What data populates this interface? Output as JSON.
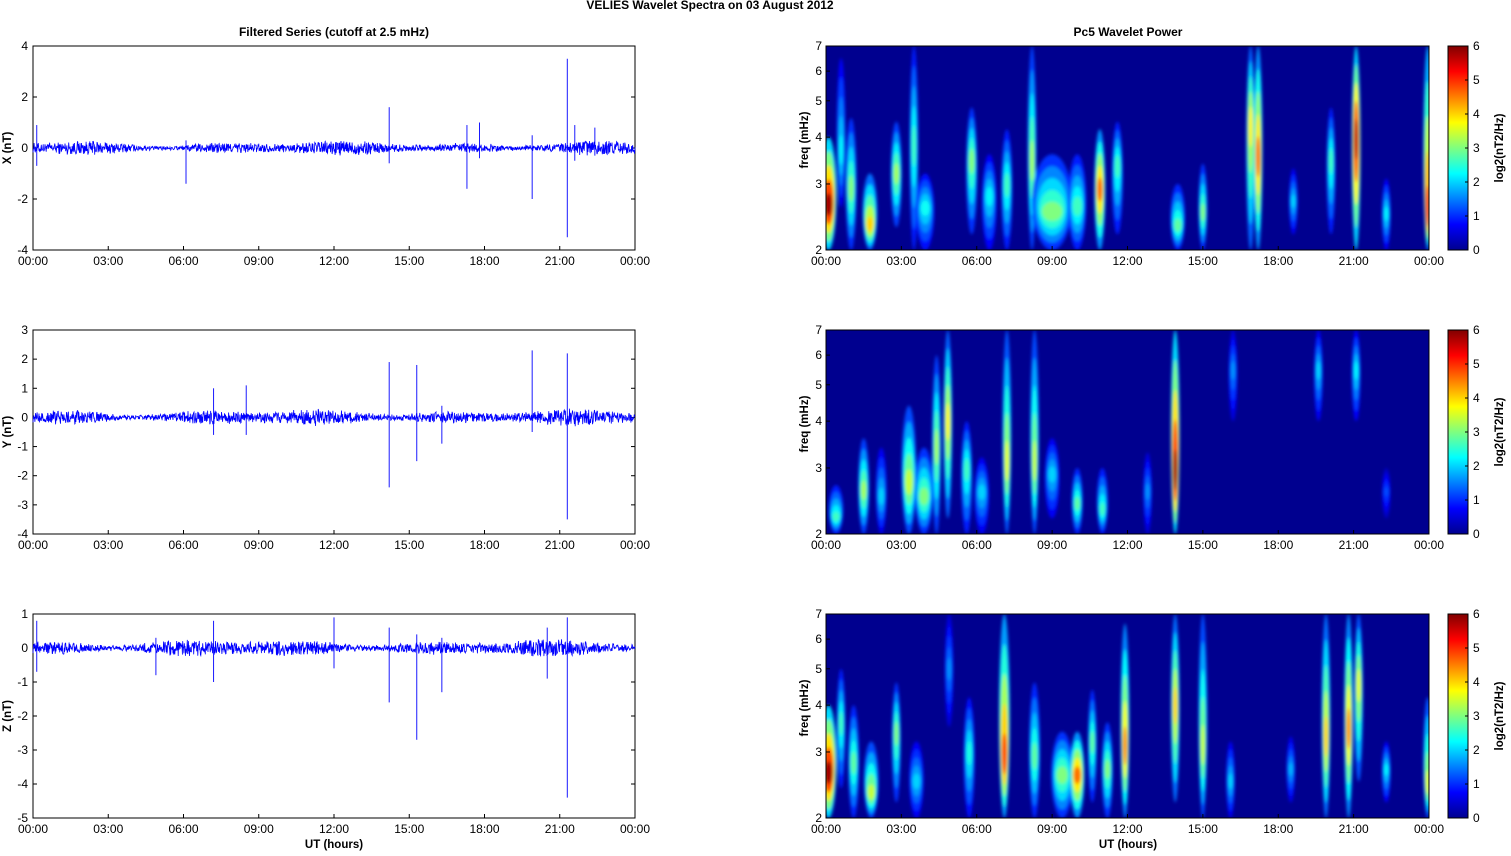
{
  "figure": {
    "title": "VELIES Wavelet Spectra on 03 August    2012",
    "left_title": "Filtered Series (cutoff at 2.5 mHz)",
    "right_title": "Pc5 Wavelet Power",
    "xlabel": "UT (hours)",
    "freq_label": "freq (mHz)",
    "colorbar_label": "log2(nT2/Hz)",
    "colors": {
      "trace": "#0000ff",
      "spectrum_background": "#00008f"
    }
  },
  "chart_data": [
    {
      "type": "line",
      "panel": "X filtered series",
      "ylabel": "X (nT)",
      "ylim": [
        -4,
        4
      ],
      "yticks": [
        -4,
        -2,
        0,
        2,
        4
      ],
      "xlim_hours": [
        0,
        24
      ],
      "xticks": [
        "00:00",
        "03:00",
        "06:00",
        "09:00",
        "12:00",
        "15:00",
        "18:00",
        "21:00",
        "00:00"
      ],
      "baseline_amplitude_nT": 0.25,
      "spikes": [
        {
          "t": 0.15,
          "min": -0.7,
          "max": 0.9
        },
        {
          "t": 6.1,
          "min": -1.4,
          "max": 0.3
        },
        {
          "t": 14.2,
          "min": -0.6,
          "max": 1.6
        },
        {
          "t": 17.3,
          "min": -1.6,
          "max": 0.9
        },
        {
          "t": 17.8,
          "min": -0.4,
          "max": 1.0
        },
        {
          "t": 19.9,
          "min": -2.0,
          "max": 0.5
        },
        {
          "t": 21.3,
          "min": -3.5,
          "max": 3.5
        },
        {
          "t": 21.6,
          "min": -0.5,
          "max": 0.9
        },
        {
          "t": 22.4,
          "min": -0.3,
          "max": 0.8
        }
      ]
    },
    {
      "type": "line",
      "panel": "Y filtered series",
      "ylabel": "Y (nT)",
      "ylim": [
        -4,
        3
      ],
      "yticks": [
        -4,
        -3,
        -2,
        -1,
        0,
        1,
        2,
        3
      ],
      "xlim_hours": [
        0,
        24
      ],
      "xticks": [
        "00:00",
        "03:00",
        "06:00",
        "09:00",
        "12:00",
        "15:00",
        "18:00",
        "21:00",
        "00:00"
      ],
      "baseline_amplitude_nT": 0.25,
      "spikes": [
        {
          "t": 7.2,
          "min": -0.6,
          "max": 1.0
        },
        {
          "t": 8.5,
          "min": -0.6,
          "max": 1.1
        },
        {
          "t": 14.2,
          "min": -2.4,
          "max": 1.9
        },
        {
          "t": 15.3,
          "min": -1.5,
          "max": 1.8
        },
        {
          "t": 16.3,
          "min": -0.9,
          "max": 0.4
        },
        {
          "t": 19.9,
          "min": -0.5,
          "max": 2.3
        },
        {
          "t": 21.3,
          "min": -3.5,
          "max": 2.2
        }
      ]
    },
    {
      "type": "line",
      "panel": "Z filtered series",
      "ylabel": "Z (nT)",
      "ylim": [
        -5,
        1
      ],
      "yticks": [
        -5,
        -4,
        -3,
        -2,
        -1,
        0,
        1
      ],
      "xlim_hours": [
        0,
        24
      ],
      "xticks": [
        "00:00",
        "03:00",
        "06:00",
        "09:00",
        "12:00",
        "15:00",
        "18:00",
        "21:00",
        "00:00"
      ],
      "baseline_amplitude_nT": 0.22,
      "spikes": [
        {
          "t": 0.15,
          "min": -0.7,
          "max": 0.8
        },
        {
          "t": 4.9,
          "min": -0.8,
          "max": 0.3
        },
        {
          "t": 7.2,
          "min": -1.0,
          "max": 0.8
        },
        {
          "t": 12.0,
          "min": -0.6,
          "max": 0.9
        },
        {
          "t": 14.2,
          "min": -1.6,
          "max": 0.6
        },
        {
          "t": 15.3,
          "min": -2.7,
          "max": 0.4
        },
        {
          "t": 16.3,
          "min": -1.3,
          "max": 0.3
        },
        {
          "t": 20.5,
          "min": -0.9,
          "max": 0.6
        },
        {
          "t": 21.3,
          "min": -4.4,
          "max": 0.9
        }
      ]
    },
    {
      "type": "heatmap",
      "panel": "X wavelet power",
      "ylabel": "freq (mHz)",
      "yscale": "log",
      "ylim": [
        2,
        7
      ],
      "yticks": [
        2,
        3,
        4,
        5,
        6,
        7
      ],
      "xlim_hours": [
        0,
        24
      ],
      "xticks": [
        "00:00",
        "03:00",
        "06:00",
        "09:00",
        "12:00",
        "15:00",
        "18:00",
        "21:00",
        "00:00"
      ],
      "colorbar": {
        "range": [
          0,
          6
        ],
        "ticks": [
          0,
          1,
          2,
          3,
          4,
          5,
          6
        ],
        "colormap": "jet"
      },
      "blobs": [
        {
          "t": 0.1,
          "f": 2.6,
          "power": 5.8,
          "width_h": 0.22,
          "fmin": 2.0,
          "fmax": 4.0
        },
        {
          "t": 0.6,
          "f": 3.6,
          "power": 2.2,
          "width_h": 0.1,
          "fmin": 2.6,
          "fmax": 6.5
        },
        {
          "t": 1.0,
          "f": 2.9,
          "power": 3.0,
          "width_h": 0.15,
          "fmin": 2.0,
          "fmax": 4.5
        },
        {
          "t": 1.75,
          "f": 2.3,
          "power": 4.0,
          "width_h": 0.2,
          "fmin": 2.0,
          "fmax": 3.2
        },
        {
          "t": 2.8,
          "f": 3.2,
          "power": 3.2,
          "width_h": 0.15,
          "fmin": 2.3,
          "fmax": 4.4
        },
        {
          "t": 3.5,
          "f": 3.8,
          "power": 2.6,
          "width_h": 0.08,
          "fmin": 2.0,
          "fmax": 7.0
        },
        {
          "t": 3.95,
          "f": 2.6,
          "power": 2.3,
          "width_h": 0.25,
          "fmin": 2.0,
          "fmax": 3.2
        },
        {
          "t": 5.8,
          "f": 3.5,
          "power": 3.0,
          "width_h": 0.15,
          "fmin": 2.2,
          "fmax": 4.8
        },
        {
          "t": 6.5,
          "f": 2.8,
          "power": 2.2,
          "width_h": 0.2,
          "fmin": 2.0,
          "fmax": 3.6
        },
        {
          "t": 7.2,
          "f": 3.0,
          "power": 2.6,
          "width_h": 0.15,
          "fmin": 2.0,
          "fmax": 4.2
        },
        {
          "t": 8.2,
          "f": 3.4,
          "power": 3.2,
          "width_h": 0.1,
          "fmin": 2.0,
          "fmax": 7.0
        },
        {
          "t": 9.0,
          "f": 2.5,
          "power": 3.0,
          "width_h": 0.55,
          "fmin": 2.0,
          "fmax": 3.6
        },
        {
          "t": 10.0,
          "f": 2.6,
          "power": 2.6,
          "width_h": 0.25,
          "fmin": 2.0,
          "fmax": 3.6
        },
        {
          "t": 10.9,
          "f": 2.9,
          "power": 4.6,
          "width_h": 0.15,
          "fmin": 2.0,
          "fmax": 4.2
        },
        {
          "t": 11.6,
          "f": 3.4,
          "power": 2.6,
          "width_h": 0.15,
          "fmin": 2.2,
          "fmax": 4.4
        },
        {
          "t": 14.0,
          "f": 2.3,
          "power": 2.8,
          "width_h": 0.2,
          "fmin": 2.0,
          "fmax": 3.0
        },
        {
          "t": 15.0,
          "f": 2.5,
          "power": 3.0,
          "width_h": 0.12,
          "fmin": 2.0,
          "fmax": 3.4
        },
        {
          "t": 16.9,
          "f": 4.4,
          "power": 3.8,
          "width_h": 0.06,
          "fmin": 2.0,
          "fmax": 7.0
        },
        {
          "t": 17.2,
          "f": 3.5,
          "power": 4.6,
          "width_h": 0.08,
          "fmin": 2.0,
          "fmax": 7.0
        },
        {
          "t": 18.6,
          "f": 2.7,
          "power": 2.0,
          "width_h": 0.1,
          "fmin": 2.2,
          "fmax": 3.3
        },
        {
          "t": 20.1,
          "f": 3.5,
          "power": 2.6,
          "width_h": 0.1,
          "fmin": 2.2,
          "fmax": 4.8
        },
        {
          "t": 21.1,
          "f": 4.0,
          "power": 5.6,
          "width_h": 0.06,
          "fmin": 2.0,
          "fmax": 7.0
        },
        {
          "t": 22.3,
          "f": 2.5,
          "power": 2.2,
          "width_h": 0.12,
          "fmin": 2.0,
          "fmax": 3.1
        },
        {
          "t": 23.95,
          "f": 2.4,
          "power": 5.0,
          "width_h": 0.05,
          "fmin": 2.0,
          "fmax": 7.0
        }
      ]
    },
    {
      "type": "heatmap",
      "panel": "Y wavelet power",
      "ylabel": "freq (mHz)",
      "yscale": "log",
      "ylim": [
        2,
        7
      ],
      "yticks": [
        2,
        3,
        4,
        5,
        6,
        7
      ],
      "xlim_hours": [
        0,
        24
      ],
      "xticks": [
        "00:00",
        "03:00",
        "06:00",
        "09:00",
        "12:00",
        "15:00",
        "18:00",
        "21:00",
        "00:00"
      ],
      "colorbar": {
        "range": [
          0,
          6
        ],
        "ticks": [
          0,
          1,
          2,
          3,
          4,
          5,
          6
        ],
        "colormap": "jet"
      },
      "blobs": [
        {
          "t": 0.4,
          "f": 2.2,
          "power": 2.6,
          "width_h": 0.2,
          "fmin": 2.0,
          "fmax": 2.7
        },
        {
          "t": 1.5,
          "f": 2.6,
          "power": 3.2,
          "width_h": 0.15,
          "fmin": 2.0,
          "fmax": 3.6
        },
        {
          "t": 2.2,
          "f": 2.5,
          "power": 2.0,
          "width_h": 0.15,
          "fmin": 2.0,
          "fmax": 3.4
        },
        {
          "t": 3.3,
          "f": 2.7,
          "power": 3.4,
          "width_h": 0.2,
          "fmin": 2.0,
          "fmax": 4.4
        },
        {
          "t": 3.9,
          "f": 2.5,
          "power": 3.0,
          "width_h": 0.25,
          "fmin": 2.0,
          "fmax": 3.4
        },
        {
          "t": 4.4,
          "f": 3.4,
          "power": 3.2,
          "width_h": 0.12,
          "fmin": 2.0,
          "fmax": 6.0
        },
        {
          "t": 4.85,
          "f": 4.0,
          "power": 3.8,
          "width_h": 0.1,
          "fmin": 2.2,
          "fmax": 7.0
        },
        {
          "t": 5.6,
          "f": 3.0,
          "power": 2.6,
          "width_h": 0.15,
          "fmin": 2.0,
          "fmax": 4.0
        },
        {
          "t": 6.2,
          "f": 2.6,
          "power": 2.0,
          "width_h": 0.2,
          "fmin": 2.0,
          "fmax": 3.2
        },
        {
          "t": 7.2,
          "f": 3.0,
          "power": 3.6,
          "width_h": 0.08,
          "fmin": 2.0,
          "fmax": 7.0
        },
        {
          "t": 8.3,
          "f": 3.0,
          "power": 3.4,
          "width_h": 0.1,
          "fmin": 2.0,
          "fmax": 7.0
        },
        {
          "t": 9.0,
          "f": 2.9,
          "power": 2.0,
          "width_h": 0.2,
          "fmin": 2.2,
          "fmax": 3.6
        },
        {
          "t": 10.0,
          "f": 2.4,
          "power": 2.8,
          "width_h": 0.15,
          "fmin": 2.0,
          "fmax": 3.0
        },
        {
          "t": 11.0,
          "f": 2.3,
          "power": 2.6,
          "width_h": 0.15,
          "fmin": 2.0,
          "fmax": 3.0
        },
        {
          "t": 12.8,
          "f": 2.6,
          "power": 1.6,
          "width_h": 0.08,
          "fmin": 2.0,
          "fmax": 3.3
        },
        {
          "t": 13.9,
          "f": 2.8,
          "power": 5.8,
          "width_h": 0.12,
          "fmin": 2.0,
          "fmax": 7.0
        },
        {
          "t": 16.2,
          "f": 5.5,
          "power": 1.6,
          "width_h": 0.04,
          "fmin": 4.0,
          "fmax": 7.0
        },
        {
          "t": 19.6,
          "f": 5.5,
          "power": 2.0,
          "width_h": 0.05,
          "fmin": 4.0,
          "fmax": 7.0
        },
        {
          "t": 21.1,
          "f": 5.5,
          "power": 2.2,
          "width_h": 0.05,
          "fmin": 4.0,
          "fmax": 7.0
        },
        {
          "t": 22.3,
          "f": 2.6,
          "power": 1.2,
          "width_h": 0.1,
          "fmin": 2.2,
          "fmax": 3.0
        }
      ]
    },
    {
      "type": "heatmap",
      "panel": "Z wavelet power",
      "ylabel": "freq (mHz)",
      "yscale": "log",
      "ylim": [
        2,
        7
      ],
      "yticks": [
        2,
        3,
        4,
        5,
        6,
        7
      ],
      "xlim_hours": [
        0,
        24
      ],
      "xticks": [
        "00:00",
        "03:00",
        "06:00",
        "09:00",
        "12:00",
        "15:00",
        "18:00",
        "21:00",
        "00:00"
      ],
      "colorbar": {
        "range": [
          0,
          6
        ],
        "ticks": [
          0,
          1,
          2,
          3,
          4,
          5,
          6
        ],
        "colormap": "jet"
      },
      "blobs": [
        {
          "t": 0.1,
          "f": 2.6,
          "power": 5.8,
          "width_h": 0.22,
          "fmin": 2.0,
          "fmax": 4.0
        },
        {
          "t": 0.6,
          "f": 3.6,
          "power": 2.6,
          "width_h": 0.1,
          "fmin": 2.4,
          "fmax": 5.0
        },
        {
          "t": 1.1,
          "f": 2.8,
          "power": 2.8,
          "width_h": 0.15,
          "fmin": 2.0,
          "fmax": 4.0
        },
        {
          "t": 1.8,
          "f": 2.3,
          "power": 3.4,
          "width_h": 0.2,
          "fmin": 2.0,
          "fmax": 3.2
        },
        {
          "t": 2.8,
          "f": 3.4,
          "power": 3.0,
          "width_h": 0.12,
          "fmin": 2.2,
          "fmax": 4.6
        },
        {
          "t": 3.6,
          "f": 2.5,
          "power": 2.0,
          "width_h": 0.2,
          "fmin": 2.0,
          "fmax": 3.2
        },
        {
          "t": 4.9,
          "f": 5.0,
          "power": 1.6,
          "width_h": 0.05,
          "fmin": 3.5,
          "fmax": 7.0
        },
        {
          "t": 5.7,
          "f": 3.0,
          "power": 2.4,
          "width_h": 0.15,
          "fmin": 2.0,
          "fmax": 4.2
        },
        {
          "t": 7.1,
          "f": 2.8,
          "power": 4.8,
          "width_h": 0.15,
          "fmin": 2.0,
          "fmax": 7.0
        },
        {
          "t": 8.3,
          "f": 2.9,
          "power": 2.8,
          "width_h": 0.15,
          "fmin": 2.0,
          "fmax": 4.6
        },
        {
          "t": 9.4,
          "f": 2.6,
          "power": 3.0,
          "width_h": 0.3,
          "fmin": 2.0,
          "fmax": 3.4
        },
        {
          "t": 10.0,
          "f": 2.6,
          "power": 4.6,
          "width_h": 0.2,
          "fmin": 2.0,
          "fmax": 3.4
        },
        {
          "t": 10.6,
          "f": 3.2,
          "power": 2.8,
          "width_h": 0.12,
          "fmin": 2.2,
          "fmax": 4.4
        },
        {
          "t": 11.2,
          "f": 2.7,
          "power": 3.0,
          "width_h": 0.15,
          "fmin": 2.0,
          "fmax": 3.6
        },
        {
          "t": 11.9,
          "f": 3.0,
          "power": 4.4,
          "width_h": 0.12,
          "fmin": 2.0,
          "fmax": 6.6
        },
        {
          "t": 13.9,
          "f": 4.0,
          "power": 4.0,
          "width_h": 0.08,
          "fmin": 2.2,
          "fmax": 7.0
        },
        {
          "t": 15.0,
          "f": 3.0,
          "power": 3.4,
          "width_h": 0.08,
          "fmin": 2.0,
          "fmax": 7.0
        },
        {
          "t": 16.1,
          "f": 2.5,
          "power": 2.0,
          "width_h": 0.1,
          "fmin": 2.0,
          "fmax": 3.2
        },
        {
          "t": 18.5,
          "f": 2.7,
          "power": 1.8,
          "width_h": 0.1,
          "fmin": 2.2,
          "fmax": 3.3
        },
        {
          "t": 19.9,
          "f": 3.2,
          "power": 4.0,
          "width_h": 0.1,
          "fmin": 2.0,
          "fmax": 7.0
        },
        {
          "t": 20.8,
          "f": 3.4,
          "power": 4.4,
          "width_h": 0.08,
          "fmin": 2.0,
          "fmax": 7.0
        },
        {
          "t": 21.2,
          "f": 4.6,
          "power": 3.6,
          "width_h": 0.06,
          "fmin": 2.5,
          "fmax": 7.0
        },
        {
          "t": 22.3,
          "f": 2.7,
          "power": 2.2,
          "width_h": 0.1,
          "fmin": 2.2,
          "fmax": 3.2
        },
        {
          "t": 23.95,
          "f": 2.4,
          "power": 3.6,
          "width_h": 0.05,
          "fmin": 2.0,
          "fmax": 4.2
        }
      ]
    }
  ]
}
